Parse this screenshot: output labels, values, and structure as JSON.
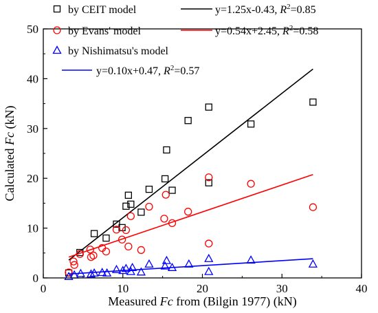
{
  "chart_data": {
    "type": "scatter",
    "xlabel": {
      "pre": "Measured ",
      "italic": "Fc",
      "post": " from (Bilgin 1977) (kN)"
    },
    "ylabel": {
      "pre": "Calculated ",
      "italic": "Fc",
      "post": " (kN)"
    },
    "xlim": [
      0,
      40
    ],
    "ylim": [
      0,
      50
    ],
    "x_ticks": [
      0,
      10,
      20,
      30,
      40
    ],
    "y_ticks": [
      0,
      10,
      20,
      30,
      40,
      50
    ],
    "grid": false,
    "legend_position": "top-left",
    "series": [
      {
        "name": "by CEIT model",
        "marker": "square",
        "color": "#000000",
        "points": [
          [
            3.2,
            1.0
          ],
          [
            4.6,
            5.1
          ],
          [
            6.4,
            8.9
          ],
          [
            7.9,
            8.0
          ],
          [
            9.2,
            10.8
          ],
          [
            9.9,
            10.1
          ],
          [
            10.4,
            14.4
          ],
          [
            10.7,
            16.6
          ],
          [
            11.0,
            14.8
          ],
          [
            12.3,
            13.2
          ],
          [
            13.3,
            17.8
          ],
          [
            15.3,
            19.9
          ],
          [
            15.5,
            25.7
          ],
          [
            16.2,
            17.6
          ],
          [
            18.2,
            31.6
          ],
          [
            20.8,
            34.3
          ],
          [
            20.8,
            19.1
          ],
          [
            26.1,
            30.9
          ],
          [
            33.9,
            35.3
          ]
        ],
        "fit": {
          "label": "y=1.25x-0.43, ",
          "r2_value": "=0.85",
          "slope": 1.25,
          "intercept": -0.43,
          "x_range": [
            3.2,
            33.9
          ]
        }
      },
      {
        "name": "by Evans' model",
        "marker": "circle",
        "color": "#ff0000",
        "points": [
          [
            3.2,
            1.1
          ],
          [
            3.8,
            3.3
          ],
          [
            3.9,
            2.6
          ],
          [
            4.6,
            4.8
          ],
          [
            5.9,
            5.7
          ],
          [
            6.0,
            4.2
          ],
          [
            6.3,
            4.5
          ],
          [
            7.4,
            6.0
          ],
          [
            7.9,
            5.3
          ],
          [
            9.2,
            9.7
          ],
          [
            9.9,
            7.7
          ],
          [
            10.4,
            9.6
          ],
          [
            10.7,
            6.3
          ],
          [
            11.0,
            12.4
          ],
          [
            12.3,
            5.6
          ],
          [
            13.3,
            14.3
          ],
          [
            15.2,
            11.9
          ],
          [
            15.4,
            16.7
          ],
          [
            16.2,
            11.0
          ],
          [
            18.2,
            13.3
          ],
          [
            20.8,
            20.2
          ],
          [
            20.8,
            6.9
          ],
          [
            26.1,
            18.9
          ],
          [
            33.9,
            14.2
          ]
        ],
        "fit": {
          "label": "y=0.54x+2.45, ",
          "r2_value": "=0.58",
          "slope": 0.54,
          "intercept": 2.45,
          "x_range": [
            3.2,
            33.9
          ]
        }
      },
      {
        "name": "by Nishimatsu's model",
        "marker": "triangle",
        "color": "#0000ff",
        "points": [
          [
            3.2,
            0.3
          ],
          [
            3.9,
            0.6
          ],
          [
            4.7,
            0.9
          ],
          [
            6.0,
            0.8
          ],
          [
            6.4,
            1.0
          ],
          [
            7.4,
            1.1
          ],
          [
            8.0,
            1.0
          ],
          [
            9.2,
            1.7
          ],
          [
            10.0,
            1.5
          ],
          [
            10.4,
            1.9
          ],
          [
            11.0,
            1.3
          ],
          [
            11.2,
            2.1
          ],
          [
            12.3,
            1.2
          ],
          [
            13.3,
            2.8
          ],
          [
            15.3,
            2.4
          ],
          [
            15.5,
            3.5
          ],
          [
            16.2,
            2.1
          ],
          [
            18.3,
            2.8
          ],
          [
            20.8,
            3.9
          ],
          [
            20.8,
            1.3
          ],
          [
            26.1,
            3.6
          ],
          [
            33.9,
            2.8
          ]
        ],
        "fit": {
          "label": "y=0.10x+0.47, ",
          "r2_value": "=0.57",
          "slope": 0.1,
          "intercept": 0.47,
          "x_range": [
            3.2,
            33.9
          ]
        }
      }
    ]
  }
}
